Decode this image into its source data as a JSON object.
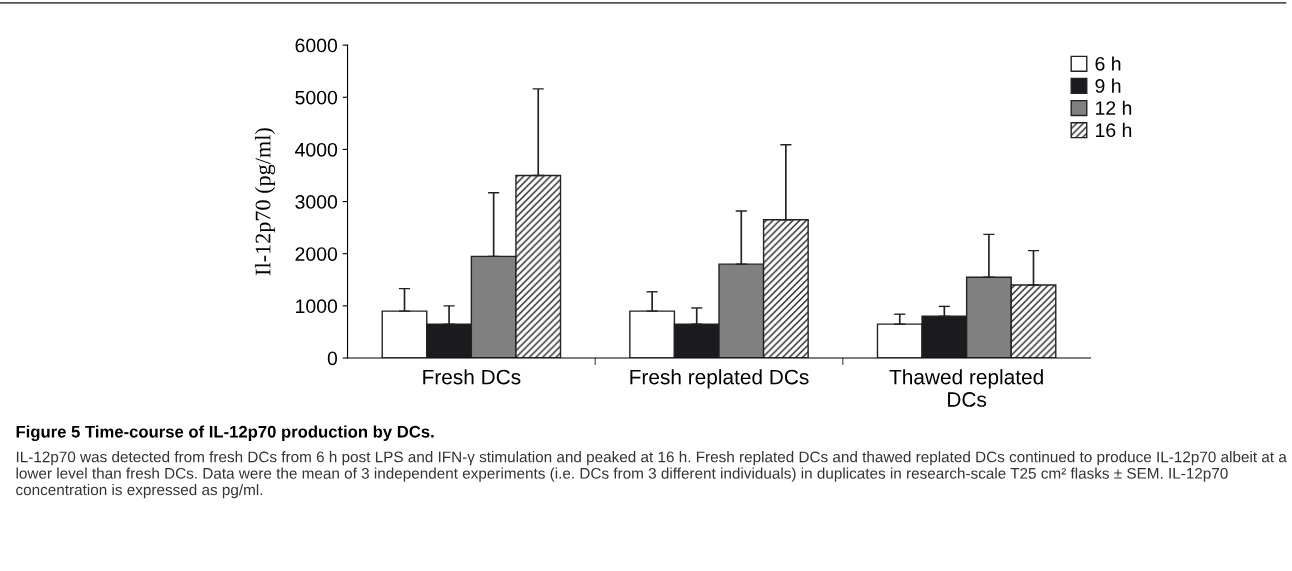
{
  "chart_data": {
    "type": "bar",
    "title": "Figure 5 Time-course of IL-12p70 production by DCs.",
    "ylabel": "Il-12p70 (pg/ml)",
    "categories": [
      "Fresh DCs",
      "Fresh replated DCs",
      "Thawed replated\nDCs"
    ],
    "series": [
      {
        "name": "6 h",
        "color": "#ffffff",
        "values": [
          900,
          900,
          650
        ],
        "errors": [
          [
            900,
            1330
          ],
          [
            900,
            1270
          ],
          [
            650,
            840
          ]
        ]
      },
      {
        "name": "9 h",
        "color": "#1a1a1f",
        "values": [
          650,
          650,
          800
        ],
        "errors": [
          [
            650,
            1000
          ],
          [
            650,
            960
          ],
          [
            800,
            990
          ]
        ]
      },
      {
        "name": "12 h",
        "color": "#808080",
        "values": [
          1950,
          1800,
          1550
        ],
        "errors": [
          [
            1950,
            3170
          ],
          [
            1800,
            2820
          ],
          [
            1550,
            2370
          ]
        ]
      },
      {
        "name": "16 h",
        "color": "#222222",
        "values": [
          3500,
          2650,
          1400
        ],
        "errors": [
          [
            3500,
            5160
          ],
          [
            2650,
            4090
          ],
          [
            1400,
            2060
          ]
        ]
      }
    ],
    "ylim": [
      0,
      6000
    ],
    "yticks": [
      0,
      1000,
      2000,
      3000,
      4000,
      5000,
      6000
    ],
    "grid": false,
    "legend": "top right",
    "annotations": [
      "IL-12p70 was detected from fresh DCs from 6 h post LPS and IFN-γ stimulation and peaked at 16 h. Fresh replated DCs and thawed replated DCs continued to produce IL-12p70 albeit at a lower level than fresh DCs. Data were the mean of 3 independent experiments (i.e. DCs from 3 different individuals) in duplicates in research-scale T25 cm² flasks ± SEM. IL-12p70 concentration is expressed as pg/ml."
    ]
  }
}
